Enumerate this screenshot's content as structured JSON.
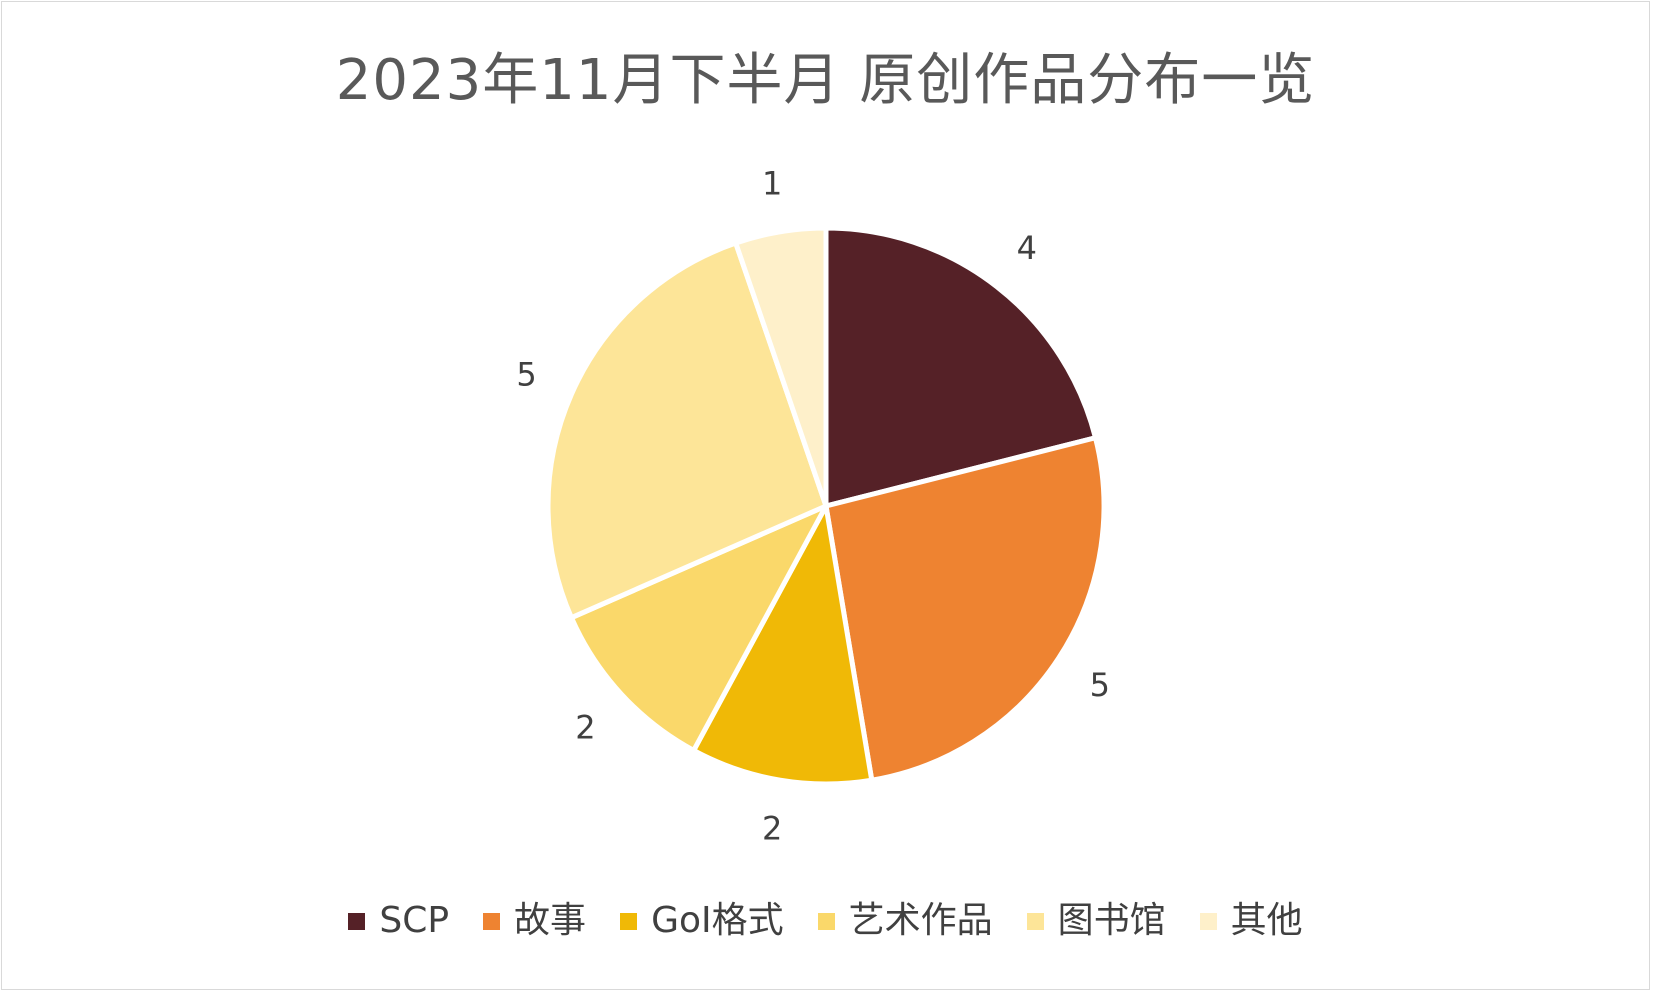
{
  "chart_data": {
    "type": "pie",
    "title": "2023年11月下半月 原创作品分布一览",
    "categories": [
      "SCP",
      "故事",
      "GoI格式",
      "艺术作品",
      "图书馆",
      "其他"
    ],
    "values": [
      4,
      5,
      2,
      2,
      5,
      1
    ],
    "colors": [
      "#552127",
      "#ee8331",
      "#f0b906",
      "#fad86a",
      "#fde598",
      "#fef0ca"
    ],
    "data_labels": [
      "4",
      "5",
      "2",
      "2",
      "5",
      "1"
    ],
    "legend_position": "bottom",
    "start_angle": "12 o'clock",
    "direction": "clockwise"
  },
  "legend": {
    "items": [
      {
        "label": "SCP",
        "color": "#552127"
      },
      {
        "label": "故事",
        "color": "#ee8331"
      },
      {
        "label": "GoI格式",
        "color": "#f0b906"
      },
      {
        "label": "艺术作品",
        "color": "#fad86a"
      },
      {
        "label": "图书馆",
        "color": "#fde598"
      },
      {
        "label": "其他",
        "color": "#fef0ca"
      }
    ]
  }
}
